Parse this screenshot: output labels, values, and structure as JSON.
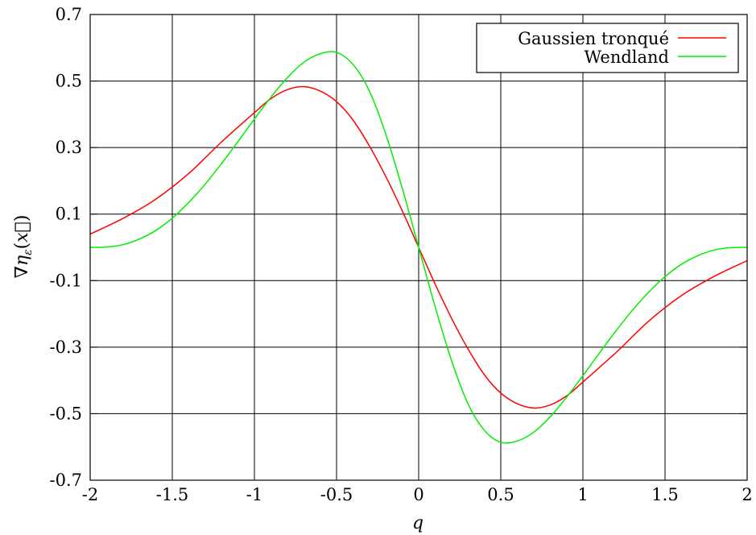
{
  "chart_data": {
    "type": "line",
    "title": "",
    "xlabel": "q",
    "ylabel": "∇η_ε(x⃗)",
    "ylabel_parts": {
      "nabla": "∇η",
      "sub": "ε",
      "paren_open": "(",
      "var": "x⃗",
      "paren_close": ")"
    },
    "xlim": [
      -2,
      2
    ],
    "ylim": [
      -0.7,
      0.7
    ],
    "x_ticks": [
      -2,
      -1.5,
      -1,
      -0.5,
      0,
      0.5,
      1,
      1.5,
      2
    ],
    "x_tick_labels": [
      "-2",
      "-1.5",
      "-1",
      "-0.5",
      "0",
      "0.5",
      "1",
      "1.5",
      "2"
    ],
    "y_ticks": [
      -0.7,
      -0.5,
      -0.3,
      -0.1,
      0.1,
      0.3,
      0.5,
      0.7
    ],
    "y_tick_labels": [
      "-0.7",
      "-0.5",
      "-0.3",
      "-0.1",
      "0.1",
      "0.3",
      "0.5",
      "0.7"
    ],
    "grid": true,
    "legend_position": "top-right",
    "series": [
      {
        "name": "Gaussien tronqué",
        "color": "#ff0000",
        "x": [
          -2.0,
          -1.8,
          -1.6,
          -1.4,
          -1.2,
          -1.0,
          -0.9,
          -0.8,
          -0.7,
          -0.6,
          -0.5,
          -0.4,
          -0.3,
          -0.2,
          -0.1,
          0.0,
          0.1,
          0.2,
          0.3,
          0.4,
          0.5,
          0.6,
          0.7,
          0.8,
          0.9,
          1.0,
          1.2,
          1.4,
          1.6,
          1.8,
          2.0
        ],
        "y": [
          0.04,
          0.087,
          0.145,
          0.222,
          0.317,
          0.405,
          0.447,
          0.474,
          0.483,
          0.47,
          0.438,
          0.383,
          0.305,
          0.213,
          0.11,
          0.0,
          -0.11,
          -0.213,
          -0.305,
          -0.383,
          -0.438,
          -0.47,
          -0.483,
          -0.474,
          -0.447,
          -0.405,
          -0.317,
          -0.222,
          -0.145,
          -0.087,
          -0.04
        ]
      },
      {
        "name": "Wendland",
        "color": "#00ee00",
        "x": [
          -2.0,
          -1.9,
          -1.8,
          -1.7,
          -1.6,
          -1.5,
          -1.4,
          -1.3,
          -1.2,
          -1.1,
          -1.0,
          -0.9,
          -0.8,
          -0.7,
          -0.6,
          -0.5,
          -0.4,
          -0.3,
          -0.2,
          -0.1,
          0.0,
          0.1,
          0.2,
          0.3,
          0.4,
          0.5,
          0.6,
          0.7,
          0.8,
          0.9,
          1.0,
          1.1,
          1.2,
          1.3,
          1.4,
          1.5,
          1.6,
          1.7,
          1.8,
          1.9,
          2.0
        ],
        "y": [
          0.0,
          0.001,
          0.008,
          0.025,
          0.051,
          0.088,
          0.135,
          0.19,
          0.252,
          0.318,
          0.386,
          0.451,
          0.51,
          0.556,
          0.582,
          0.586,
          0.55,
          0.47,
          0.34,
          0.178,
          0.0,
          -0.178,
          -0.34,
          -0.47,
          -0.55,
          -0.586,
          -0.582,
          -0.556,
          -0.51,
          -0.451,
          -0.386,
          -0.318,
          -0.252,
          -0.19,
          -0.135,
          -0.088,
          -0.051,
          -0.025,
          -0.008,
          -0.001,
          0.0
        ]
      }
    ]
  }
}
